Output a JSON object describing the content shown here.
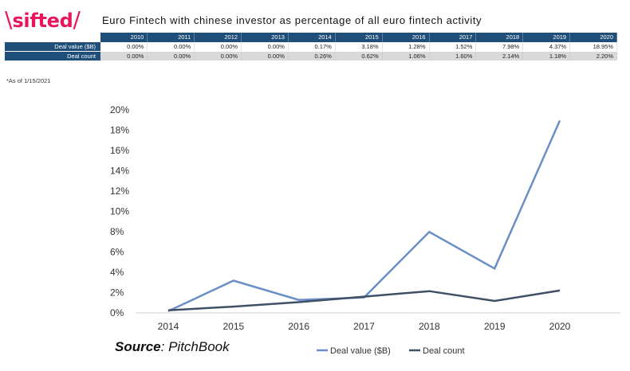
{
  "brand": {
    "slash": "\\",
    "word": "sifted",
    "end_slash": "/",
    "color": "#e8175d"
  },
  "title": "Euro Fintech with chinese investor as percentage of all euro fintech activity",
  "table": {
    "years": [
      "2010",
      "2011",
      "2012",
      "2013",
      "2014",
      "2015",
      "2016",
      "2017",
      "2018",
      "2019",
      "2020"
    ],
    "rows": [
      {
        "label": "Deal value ($B)",
        "values": [
          "0.00%",
          "0.00%",
          "0.00%",
          "0.00%",
          "0.17%",
          "3.18%",
          "1.28%",
          "1.52%",
          "7.98%",
          "4.37%",
          "18.95%"
        ]
      },
      {
        "label": "Deal count",
        "values": [
          "0.00%",
          "0.00%",
          "0.00%",
          "0.00%",
          "0.26%",
          "0.62%",
          "1.06%",
          "1.60%",
          "2.14%",
          "1.18%",
          "2.20%"
        ]
      }
    ]
  },
  "note": "*As of 1/15/2021",
  "source": {
    "bold": "Source",
    "rest": ": PitchBook"
  },
  "chart_data": {
    "type": "line",
    "x": [
      "2014",
      "2015",
      "2016",
      "2017",
      "2018",
      "2019",
      "2020"
    ],
    "series": [
      {
        "name": "Deal value ($B)",
        "color": "#6a8fc7",
        "values": [
          0.17,
          3.18,
          1.28,
          1.52,
          7.98,
          4.37,
          18.95
        ]
      },
      {
        "name": "Deal count",
        "color": "#3f4f66",
        "values": [
          0.26,
          0.62,
          1.06,
          1.6,
          2.14,
          1.18,
          2.2
        ]
      }
    ],
    "ylim": [
      0,
      20
    ],
    "yticks": [
      "0%",
      "2%",
      "4%",
      "6%",
      "8%",
      "10%",
      "12%",
      "14%",
      "16%",
      "18%",
      "20%"
    ],
    "grid": false,
    "legend": "bottom"
  }
}
